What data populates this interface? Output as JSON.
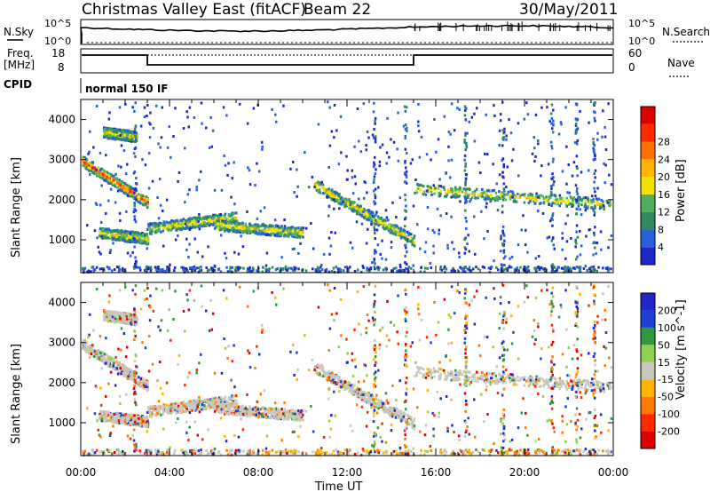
{
  "header": {
    "title": "Christmas Valley East (fitACF)",
    "beam": "Beam 22",
    "date": "30/May/2011"
  },
  "strip": {
    "nsky_label": "N.Sky",
    "nsearch_label": "N.Search",
    "left_top": "10^5",
    "left_bot": "10^0",
    "right_top": "10^5",
    "right_bot": "10^0",
    "freq_label_1": "Freq.",
    "freq_label_2": "[MHz]",
    "freq_top": "18",
    "freq_bot": "8",
    "nave_label": "Nave",
    "nave_top": "60",
    "nave_bot": "0",
    "cpid_label": "CPID",
    "cpid_text": "normal 150 IF"
  },
  "colors": {
    "power": [
      "#1e28c8",
      "#2860e0",
      "#2f8a5e",
      "#4fb060",
      "#f2e000",
      "#ffb400",
      "#ff7000",
      "#ff2a00",
      "#dc0000"
    ],
    "velocity": [
      "#dc0000",
      "#ff2a00",
      "#ff7a00",
      "#ffb400",
      "#c8c8c0",
      "#8fd050",
      "#2f9a40",
      "#1e40d0",
      "#1e28c8"
    ]
  },
  "chart_data": [
    {
      "type": "heatmap",
      "name": "power",
      "xlabel": "",
      "ylabel": "Slant Range [km]",
      "x_ticks": [
        "00:00",
        "04:00",
        "08:00",
        "12:00",
        "16:00",
        "20:00",
        "00:00"
      ],
      "y_ticks": [
        "1000",
        "2000",
        "3000",
        "4000"
      ],
      "ylim": [
        180,
        4500
      ],
      "xlim_hours": [
        0,
        24
      ],
      "colorbar_label": "Power [dB]",
      "colorbar_ticks": [
        "4",
        "8",
        "12",
        "16",
        "20",
        "24",
        "28"
      ],
      "features": [
        {
          "t0": 0.0,
          "t1": 3.0,
          "r0": 3000,
          "r1": 1950,
          "note": "descending echo band"
        },
        {
          "t0": 0.8,
          "t1": 3.0,
          "r0": 1200,
          "r1": 1050
        },
        {
          "t0": 3.0,
          "t1": 7.0,
          "r0": 1300,
          "r1": 1600
        },
        {
          "t0": 6.0,
          "t1": 10.0,
          "r0": 1400,
          "r1": 1200
        },
        {
          "t0": 10.5,
          "t1": 15.0,
          "r0": 2400,
          "r1": 1000
        },
        {
          "t0": 15.0,
          "t1": 24.0,
          "r0": 2300,
          "r1": 1900
        },
        {
          "t0": 1.0,
          "t1": 2.5,
          "r0": 3700,
          "r1": 3600
        }
      ]
    },
    {
      "type": "heatmap",
      "name": "velocity",
      "xlabel": "Time UT",
      "ylabel": "Slant Range [km]",
      "x_ticks": [
        "00:00",
        "04:00",
        "08:00",
        "12:00",
        "16:00",
        "20:00",
        "00:00"
      ],
      "y_ticks": [
        "1000",
        "2000",
        "3000",
        "4000"
      ],
      "ylim": [
        180,
        4500
      ],
      "xlim_hours": [
        0,
        24
      ],
      "colorbar_label": "Velocity [m s^-1]",
      "colorbar_ticks": [
        "200",
        "100",
        "50",
        "15",
        "-15",
        "-50",
        "-100",
        "-200"
      ]
    }
  ]
}
